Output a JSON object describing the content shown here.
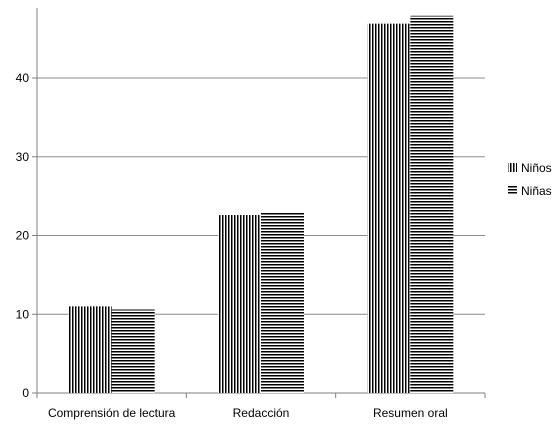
{
  "chart_data": {
    "type": "bar",
    "categories": [
      "Comprensión de lectura",
      "Redacción",
      "Resumen oral"
    ],
    "series": [
      {
        "name": "Niños",
        "values": [
          11,
          22.6,
          46.9
        ],
        "pattern": "vertical-lines",
        "color": "#000000"
      },
      {
        "name": "Niñas",
        "values": [
          10.6,
          23,
          47.9
        ],
        "pattern": "horizontal-lines",
        "color": "#000000"
      }
    ],
    "ylim": [
      0,
      50
    ],
    "yticks": [
      0,
      10,
      20,
      30,
      40
    ],
    "ytick_labels": [
      "0",
      "10",
      "20",
      "30",
      "40"
    ],
    "grid": true,
    "legend_position": "right",
    "colors": {
      "bars": "#000000",
      "grid": "#8c8c8c",
      "axis": "#7f7f7f"
    }
  }
}
